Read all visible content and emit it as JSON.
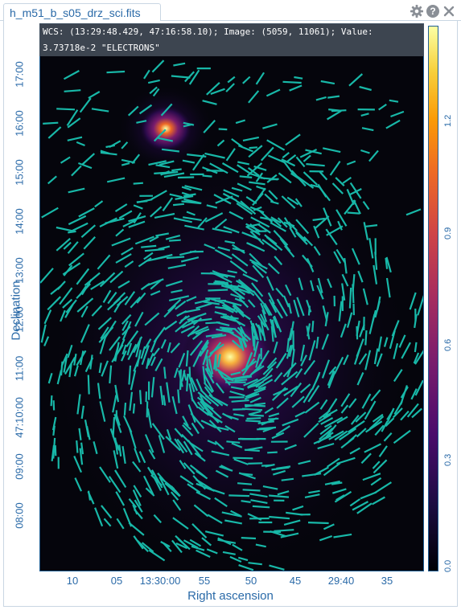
{
  "tab": {
    "title": "h_m51_b_s05_drz_sci.fits"
  },
  "toolbar": {
    "icons": [
      "gear-icon",
      "help-icon",
      "close-icon"
    ]
  },
  "readout": {
    "line1": "WCS: (13:29:48.429, 47:16:58.10); Image: (5059, 11061); Value:",
    "line2": "3.73718e-2 \"ELECTRONS\""
  },
  "axes": {
    "x_title": "Right ascension",
    "y_title": "Declination",
    "x_ticks": [
      "10",
      "05",
      "13:30:00",
      "55",
      "50",
      "45",
      "29:40",
      "35"
    ],
    "y_ticks": [
      "17:00",
      "16:00",
      "15:00",
      "14:00",
      "13:00",
      "12:00",
      "11:00",
      "47:10:00",
      "09:00",
      "08:00"
    ]
  },
  "colorbar": {
    "ticks": [
      "0.0",
      "0.3",
      "0.6",
      "0.9",
      "1.2"
    ],
    "colors": [
      "#000004",
      "#1b0c41",
      "#4a0c6b",
      "#781c6d",
      "#a52c60",
      "#cf4446",
      "#ed6925",
      "#fb9b06",
      "#f7d13d",
      "#fcffa4"
    ]
  },
  "overlay": {
    "vector_color": "#18b8a8"
  }
}
